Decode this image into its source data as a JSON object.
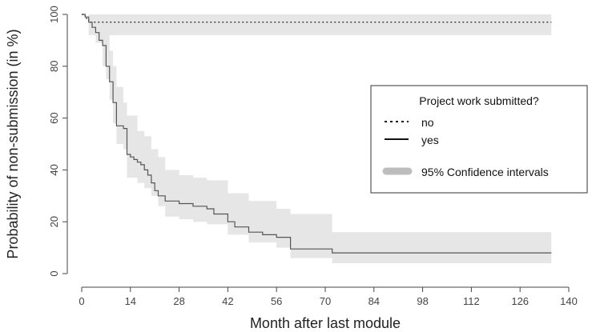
{
  "chart_data": {
    "type": "line",
    "title": "",
    "xlabel": "Month after last module",
    "ylabel": "Probability of non-submission (in %)",
    "xlim": [
      0,
      140
    ],
    "ylim": [
      0,
      100
    ],
    "x_ticks": [
      0,
      14,
      28,
      42,
      56,
      70,
      84,
      98,
      112,
      126,
      140
    ],
    "y_ticks": [
      0,
      20,
      40,
      60,
      80,
      100
    ],
    "grid": false,
    "legend": {
      "placement": "right",
      "title": "Project work submitted?",
      "entries": [
        {
          "label": "no",
          "style": "dotted"
        },
        {
          "label": "yes",
          "style": "solid"
        },
        {
          "label": "95% Confidence intervals",
          "style": "band"
        }
      ]
    },
    "colors": {
      "line": "#555555",
      "dotted": "#333333",
      "band": "#e6e6e6",
      "legend_band": "#bdbdbd"
    },
    "series": [
      {
        "name": "no",
        "style": "dotted",
        "x": [
          0,
          1,
          1,
          2,
          2,
          135
        ],
        "y": [
          100,
          100,
          98.5,
          98.5,
          97,
          97
        ],
        "ci_x": [
          0,
          2,
          135
        ],
        "ci_lower": [
          100,
          92,
          92
        ],
        "ci_upper": [
          100,
          100,
          100
        ]
      },
      {
        "name": "yes",
        "style": "solid",
        "x": [
          0,
          1,
          1,
          2,
          2,
          3,
          3,
          4,
          4,
          5,
          5,
          6,
          6,
          7,
          7,
          8,
          8,
          9,
          9,
          10,
          10,
          12,
          12,
          13,
          13,
          14,
          14,
          15,
          15,
          16,
          16,
          17,
          17,
          18,
          18,
          19,
          19,
          20,
          20,
          21,
          21,
          22,
          22,
          24,
          24,
          28,
          28,
          32,
          32,
          36,
          36,
          38,
          38,
          42,
          42,
          44,
          44,
          48,
          48,
          52,
          52,
          56,
          56,
          60,
          60,
          72,
          72,
          135
        ],
        "y": [
          100,
          100,
          99,
          99,
          97,
          97,
          95,
          95,
          93,
          93,
          90,
          90,
          88,
          88,
          80,
          80,
          74,
          74,
          66,
          66,
          57,
          57,
          56,
          56,
          46,
          46,
          45,
          45,
          44,
          44,
          43,
          43,
          42,
          42,
          40,
          40,
          38,
          38,
          35,
          35,
          32,
          32,
          30,
          30,
          28,
          28,
          27,
          27,
          26,
          26,
          25,
          25,
          23,
          23,
          20,
          20,
          18,
          18,
          16,
          16,
          15,
          15,
          14,
          14,
          9.5,
          9.5,
          8,
          8
        ],
        "ci_x": [
          0,
          2,
          4,
          6,
          7,
          8,
          9,
          10,
          12,
          13,
          16,
          18,
          20,
          22,
          24,
          28,
          32,
          36,
          42,
          48,
          56,
          60,
          72,
          135
        ],
        "ci_lower": [
          100,
          96,
          89,
          80,
          75,
          67,
          58,
          50,
          48,
          37,
          35,
          33,
          30,
          26,
          22,
          21,
          20,
          19,
          15,
          12,
          10,
          6,
          4,
          4
        ],
        "ci_upper": [
          100,
          100,
          99,
          95,
          92,
          86,
          80,
          72,
          66,
          61,
          55,
          53,
          48,
          45,
          40,
          38,
          37,
          36,
          31,
          28,
          25,
          23,
          16,
          16
        ]
      }
    ]
  }
}
